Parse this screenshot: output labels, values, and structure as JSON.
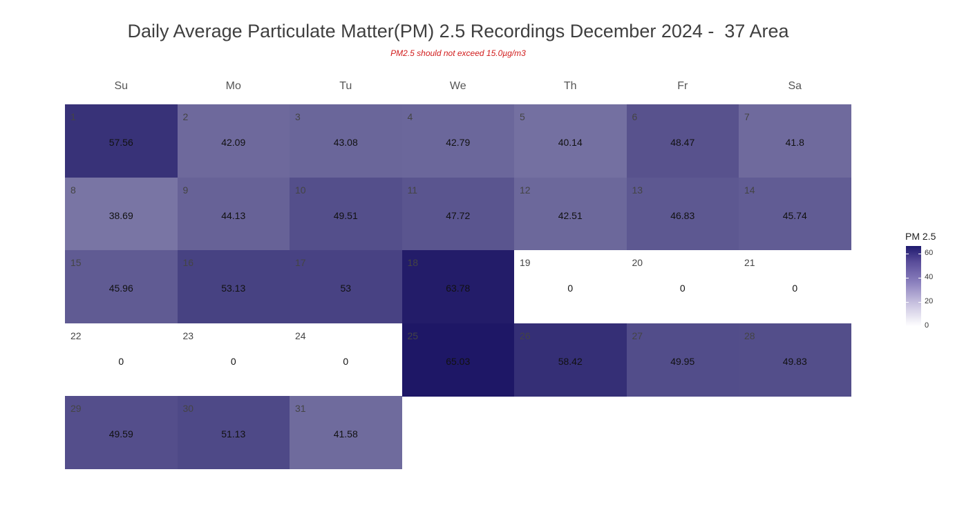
{
  "chart_data": {
    "type": "heatmap",
    "title": "Daily Average Particulate Matter(PM) 2.5 Recordings December 2024 -  37 Area",
    "subtitle": "PM2.5 should not exceed 15.0µg/m3",
    "weekdays": [
      "Su",
      "Mo",
      "Tu",
      "We",
      "Th",
      "Fr",
      "Sa"
    ],
    "first_weekday_index": 0,
    "days": [
      {
        "day": 1,
        "value": 57.56
      },
      {
        "day": 2,
        "value": 42.09
      },
      {
        "day": 3,
        "value": 43.08
      },
      {
        "day": 4,
        "value": 42.79
      },
      {
        "day": 5,
        "value": 40.14
      },
      {
        "day": 6,
        "value": 48.47
      },
      {
        "day": 7,
        "value": 41.8
      },
      {
        "day": 8,
        "value": 38.69
      },
      {
        "day": 9,
        "value": 44.13
      },
      {
        "day": 10,
        "value": 49.51
      },
      {
        "day": 11,
        "value": 47.72
      },
      {
        "day": 12,
        "value": 42.51
      },
      {
        "day": 13,
        "value": 46.83
      },
      {
        "day": 14,
        "value": 45.74
      },
      {
        "day": 15,
        "value": 45.96
      },
      {
        "day": 16,
        "value": 53.13
      },
      {
        "day": 17,
        "value": 53
      },
      {
        "day": 18,
        "value": 63.78
      },
      {
        "day": 19,
        "value": 0
      },
      {
        "day": 20,
        "value": 0
      },
      {
        "day": 21,
        "value": 0
      },
      {
        "day": 22,
        "value": 0
      },
      {
        "day": 23,
        "value": 0
      },
      {
        "day": 24,
        "value": 0
      },
      {
        "day": 25,
        "value": 65.03
      },
      {
        "day": 26,
        "value": 58.42
      },
      {
        "day": 27,
        "value": 49.95
      },
      {
        "day": 28,
        "value": 49.83
      },
      {
        "day": 29,
        "value": 49.59
      },
      {
        "day": 30,
        "value": 51.13
      },
      {
        "day": 31,
        "value": 41.58
      }
    ],
    "legend": {
      "title": "PM 2.5",
      "range": [
        0,
        66
      ],
      "ticks": [
        0,
        20,
        40,
        60
      ],
      "color_low": "#ffffff",
      "color_high": "#1b1464"
    }
  }
}
